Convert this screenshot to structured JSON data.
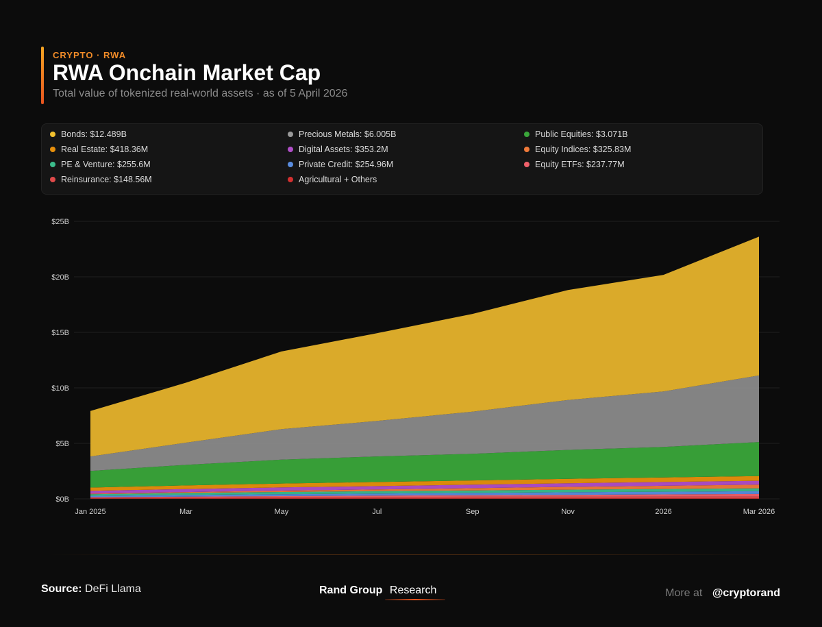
{
  "header": {
    "kicker": "CRYPTO · RWA",
    "title": "RWA Onchain Market Cap",
    "subtitle": "Total value of tokenized real-world assets · as of 5 April 2026"
  },
  "legend": [
    {
      "label": "Bonds: $12.489B",
      "color": "#f2c12e"
    },
    {
      "label": "Precious Metals: $6.005B",
      "color": "#9a9a9a"
    },
    {
      "label": "Public Equities: $3.071B",
      "color": "#3aa63a"
    },
    {
      "label": "Real Estate: $418.36M",
      "color": "#e8900c"
    },
    {
      "label": "Digital Assets: $353.2M",
      "color": "#b14fc9"
    },
    {
      "label": "Equity Indices: $325.83M",
      "color": "#f07a3a"
    },
    {
      "label": "PE & Venture: $255.6M",
      "color": "#3bbd8c"
    },
    {
      "label": "Private Credit: $254.96M",
      "color": "#5a8de0"
    },
    {
      "label": "Equity ETFs: $237.77M",
      "color": "#f0606a"
    },
    {
      "label": "Reinsurance: $148.56M",
      "color": "#e04a4a"
    },
    {
      "label": "Agricultural + Others",
      "color": "#d43030"
    }
  ],
  "chart_data": {
    "type": "area",
    "stacked": true,
    "x": [
      "2025-01",
      "2025-03",
      "2025-05",
      "2025-07",
      "2025-09",
      "2025-11",
      "2026-01",
      "2026-03"
    ],
    "x_tick_labels": [
      "Jan 2025",
      "Mar",
      "May",
      "Jul",
      "Sep",
      "Nov",
      "2026",
      "Mar 2026"
    ],
    "y_tick_labels": [
      "$0B",
      "$5B",
      "$10B",
      "$15B",
      "$20B",
      "$25B"
    ],
    "ylim": [
      0,
      25
    ],
    "y_unit": "$B",
    "grid": true,
    "series": [
      {
        "name": "Agricultural + Others",
        "color": "#c42a2a",
        "values": [
          0.05,
          0.05,
          0.05,
          0.05,
          0.05,
          0.05,
          0.05,
          0.05
        ]
      },
      {
        "name": "Reinsurance",
        "color": "#e04a4a",
        "values": [
          0.08,
          0.1,
          0.12,
          0.13,
          0.14,
          0.14,
          0.15,
          0.15
        ]
      },
      {
        "name": "Equity ETFs",
        "color": "#f0606a",
        "values": [
          0.02,
          0.05,
          0.08,
          0.11,
          0.14,
          0.17,
          0.2,
          0.24
        ]
      },
      {
        "name": "Private Credit",
        "color": "#5a8de0",
        "values": [
          0.12,
          0.15,
          0.17,
          0.19,
          0.21,
          0.23,
          0.24,
          0.25
        ]
      },
      {
        "name": "PE & Venture",
        "color": "#3bbd8c",
        "values": [
          0.15,
          0.18,
          0.2,
          0.21,
          0.22,
          0.24,
          0.25,
          0.26
        ]
      },
      {
        "name": "Equity Indices",
        "color": "#f07a3a",
        "values": [
          0.05,
          0.08,
          0.12,
          0.16,
          0.2,
          0.25,
          0.29,
          0.33
        ]
      },
      {
        "name": "Digital Assets",
        "color": "#b14fc9",
        "values": [
          0.25,
          0.27,
          0.29,
          0.3,
          0.32,
          0.33,
          0.34,
          0.35
        ]
      },
      {
        "name": "Real Estate",
        "color": "#e8900c",
        "values": [
          0.3,
          0.33,
          0.35,
          0.37,
          0.38,
          0.4,
          0.41,
          0.42
        ]
      },
      {
        "name": "Public Equities",
        "color": "#3aa63a",
        "values": [
          1.5,
          1.85,
          2.15,
          2.3,
          2.4,
          2.6,
          2.75,
          3.07
        ]
      },
      {
        "name": "Precious Metals",
        "color": "#8a8a8a",
        "values": [
          1.3,
          2.0,
          2.75,
          3.2,
          3.8,
          4.5,
          5.0,
          6.0
        ]
      },
      {
        "name": "Bonds",
        "color": "#e6b32c",
        "values": [
          4.1,
          5.4,
          7.0,
          7.9,
          8.8,
          9.9,
          10.5,
          12.5
        ]
      }
    ]
  },
  "footer": {
    "source_label": "Source:",
    "source_value": "DeFi Llama",
    "brand_name": "Rand Group",
    "brand_sub": "Research",
    "more_label": "More at",
    "handle": "@cryptorand"
  }
}
